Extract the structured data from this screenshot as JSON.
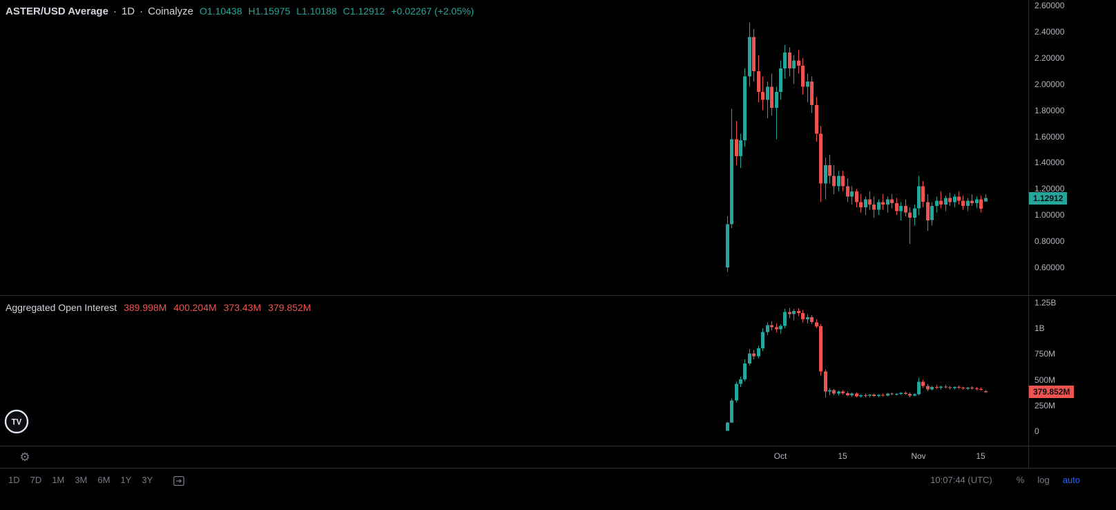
{
  "legend": {
    "symbol": "ASTER/USD Average",
    "dot": "·",
    "interval": "1D",
    "source": "Coinalyze",
    "open_label": "O",
    "open": "1.10438",
    "high_label": "H",
    "high": "1.15975",
    "low_label": "L",
    "low": "1.10188",
    "close_label": "C",
    "close": "1.12912",
    "change": "+0.02267 (+2.05%)"
  },
  "oi_legend": {
    "title": "Aggregated Open Interest",
    "open": "389.998M",
    "high": "400.204M",
    "low": "373.43M",
    "close": "379.852M"
  },
  "badges": {
    "price_last": "1.12912",
    "oi_last": "379.852M"
  },
  "toolbar": {
    "timeframes": [
      "1D",
      "7D",
      "1M",
      "3M",
      "6M",
      "1Y",
      "3Y"
    ],
    "clock": "10:07:44 (UTC)",
    "percent_label": "%",
    "log_label": "log",
    "auto_label": "auto"
  },
  "colors": {
    "green": "#26a69a",
    "red": "#ef5350",
    "accent_blue": "#2962ff"
  },
  "chart_data": [
    {
      "type": "candlestick",
      "title": "ASTER/USD Average · 1D · Coinalyze",
      "last_ohlc": {
        "o": 1.10438,
        "h": 1.15975,
        "l": 1.10188,
        "c": 1.12912,
        "change": "+0.02267 (+2.05%)"
      },
      "ylim": [
        0.55,
        2.65
      ],
      "grid": false,
      "y_ticks": [
        {
          "v": 2.6,
          "label": "2.60000"
        },
        {
          "v": 2.4,
          "label": "2.40000"
        },
        {
          "v": 2.2,
          "label": "2.20000"
        },
        {
          "v": 2.0,
          "label": "2.00000"
        },
        {
          "v": 1.8,
          "label": "1.80000"
        },
        {
          "v": 1.6,
          "label": "1.60000"
        },
        {
          "v": 1.4,
          "label": "1.40000"
        },
        {
          "v": 1.2,
          "label": "1.20000"
        },
        {
          "v": 1.0,
          "label": "1.00000"
        },
        {
          "v": 0.8,
          "label": "0.80000"
        },
        {
          "v": 0.6,
          "label": "0.60000"
        }
      ],
      "x_ticks": [
        {
          "d": 12,
          "label": "Oct"
        },
        {
          "d": 26,
          "label": "15"
        },
        {
          "d": 43,
          "label": "Nov"
        },
        {
          "d": 57,
          "label": "15"
        }
      ],
      "candles": [
        [
          0.6,
          0.99,
          0.565,
          0.93
        ],
        [
          0.93,
          1.81,
          0.9,
          1.58
        ],
        [
          1.58,
          1.72,
          1.38,
          1.45
        ],
        [
          1.45,
          1.62,
          1.36,
          1.57
        ],
        [
          1.57,
          2.12,
          1.52,
          2.06
        ],
        [
          2.06,
          2.47,
          1.98,
          2.36
        ],
        [
          2.36,
          2.42,
          2.02,
          2.1
        ],
        [
          2.1,
          2.22,
          1.86,
          1.94
        ],
        [
          1.94,
          2.06,
          1.8,
          1.88
        ],
        [
          1.88,
          2.02,
          1.74,
          1.98
        ],
        [
          1.98,
          2.08,
          1.76,
          1.82
        ],
        [
          1.82,
          1.98,
          1.58,
          1.94
        ],
        [
          1.94,
          2.18,
          1.88,
          2.12
        ],
        [
          2.12,
          2.3,
          2.04,
          2.24
        ],
        [
          2.24,
          2.28,
          2.06,
          2.12
        ],
        [
          2.12,
          2.22,
          2.0,
          2.18
        ],
        [
          2.18,
          2.26,
          2.08,
          2.14
        ],
        [
          2.14,
          2.2,
          1.92,
          1.98
        ],
        [
          1.98,
          2.08,
          1.86,
          2.02
        ],
        [
          2.02,
          2.06,
          1.78,
          1.84
        ],
        [
          1.84,
          1.9,
          1.56,
          1.62
        ],
        [
          1.62,
          1.68,
          1.1,
          1.24
        ],
        [
          1.24,
          1.44,
          1.12,
          1.38
        ],
        [
          1.38,
          1.46,
          1.24,
          1.3
        ],
        [
          1.3,
          1.38,
          1.16,
          1.22
        ],
        [
          1.22,
          1.34,
          1.18,
          1.3
        ],
        [
          1.3,
          1.34,
          1.18,
          1.22
        ],
        [
          1.22,
          1.28,
          1.1,
          1.14
        ],
        [
          1.14,
          1.22,
          1.08,
          1.18
        ],
        [
          1.18,
          1.2,
          1.06,
          1.1
        ],
        [
          1.1,
          1.16,
          1.02,
          1.06
        ],
        [
          1.06,
          1.14,
          1.0,
          1.12
        ],
        [
          1.12,
          1.18,
          1.04,
          1.08
        ],
        [
          1.08,
          1.14,
          0.98,
          1.04
        ],
        [
          1.04,
          1.12,
          1.0,
          1.1
        ],
        [
          1.1,
          1.16,
          1.04,
          1.08
        ],
        [
          1.08,
          1.14,
          1.02,
          1.12
        ],
        [
          1.12,
          1.16,
          1.05,
          1.09
        ],
        [
          1.09,
          1.13,
          1.0,
          1.03
        ],
        [
          1.03,
          1.1,
          0.96,
          1.07
        ],
        [
          1.07,
          1.12,
          0.99,
          1.02
        ],
        [
          1.02,
          1.06,
          0.78,
          0.98
        ],
        [
          0.98,
          1.08,
          0.92,
          1.05
        ],
        [
          1.05,
          1.3,
          1.0,
          1.22
        ],
        [
          1.22,
          1.26,
          1.06,
          1.1
        ],
        [
          1.1,
          1.16,
          0.88,
          0.96
        ],
        [
          0.96,
          1.1,
          0.92,
          1.07
        ],
        [
          1.07,
          1.14,
          1.02,
          1.11
        ],
        [
          1.11,
          1.18,
          1.05,
          1.08
        ],
        [
          1.08,
          1.15,
          1.03,
          1.13
        ],
        [
          1.13,
          1.17,
          1.07,
          1.1
        ],
        [
          1.1,
          1.16,
          1.06,
          1.14
        ],
        [
          1.14,
          1.18,
          1.08,
          1.11
        ],
        [
          1.11,
          1.15,
          1.04,
          1.07
        ],
        [
          1.07,
          1.13,
          1.03,
          1.11
        ],
        [
          1.11,
          1.16,
          1.07,
          1.09
        ],
        [
          1.09,
          1.14,
          1.05,
          1.12
        ],
        [
          1.12,
          1.15,
          1.02,
          1.05
        ],
        [
          1.10438,
          1.15975,
          1.10188,
          1.12912
        ]
      ]
    },
    {
      "type": "candlestick",
      "title": "Aggregated Open Interest",
      "unit": "M",
      "last_ohlc": {
        "o": 389.998,
        "h": 400.204,
        "l": 373.43,
        "c": 379.852
      },
      "ylim": [
        0,
        1350
      ],
      "grid": false,
      "y_ticks": [
        {
          "v": 1250,
          "label": "1.25B"
        },
        {
          "v": 1000,
          "label": "1B"
        },
        {
          "v": 750,
          "label": "750M"
        },
        {
          "v": 500,
          "label": "500M"
        },
        {
          "v": 250,
          "label": "250M"
        },
        {
          "v": 0,
          "label": "0"
        }
      ],
      "candles": [
        [
          5,
          90,
          4,
          85
        ],
        [
          85,
          320,
          80,
          300
        ],
        [
          300,
          480,
          280,
          460
        ],
        [
          460,
          530,
          430,
          505
        ],
        [
          505,
          700,
          485,
          660
        ],
        [
          660,
          800,
          640,
          755
        ],
        [
          755,
          790,
          700,
          730
        ],
        [
          730,
          830,
          710,
          805
        ],
        [
          805,
          1000,
          780,
          965
        ],
        [
          965,
          1060,
          935,
          1030
        ],
        [
          1030,
          1070,
          980,
          1010
        ],
        [
          1010,
          1050,
          960,
          990
        ],
        [
          990,
          1040,
          950,
          1025
        ],
        [
          1025,
          1190,
          1000,
          1160
        ],
        [
          1160,
          1200,
          1100,
          1140
        ],
        [
          1140,
          1190,
          1080,
          1170
        ],
        [
          1170,
          1195,
          1120,
          1150
        ],
        [
          1150,
          1180,
          1060,
          1090
        ],
        [
          1090,
          1140,
          1050,
          1110
        ],
        [
          1110,
          1130,
          1040,
          1060
        ],
        [
          1060,
          1090,
          1000,
          1020
        ],
        [
          1020,
          1040,
          540,
          580
        ],
        [
          580,
          600,
          330,
          385
        ],
        [
          385,
          420,
          350,
          400
        ],
        [
          400,
          410,
          348,
          365
        ],
        [
          365,
          395,
          345,
          385
        ],
        [
          385,
          400,
          355,
          370
        ],
        [
          370,
          385,
          340,
          350
        ],
        [
          350,
          375,
          335,
          365
        ],
        [
          365,
          375,
          330,
          340
        ],
        [
          340,
          360,
          325,
          350
        ],
        [
          350,
          365,
          330,
          345
        ],
        [
          345,
          360,
          330,
          355
        ],
        [
          355,
          365,
          335,
          342
        ],
        [
          342,
          358,
          330,
          352
        ],
        [
          352,
          365,
          338,
          346
        ],
        [
          346,
          372,
          340,
          365
        ],
        [
          365,
          378,
          350,
          358
        ],
        [
          358,
          370,
          345,
          362
        ],
        [
          362,
          380,
          352,
          372
        ],
        [
          372,
          385,
          355,
          362
        ],
        [
          362,
          375,
          330,
          345
        ],
        [
          345,
          370,
          338,
          360
        ],
        [
          360,
          520,
          350,
          480
        ],
        [
          480,
          500,
          420,
          440
        ],
        [
          440,
          460,
          390,
          405
        ],
        [
          405,
          440,
          395,
          430
        ],
        [
          430,
          450,
          410,
          425
        ],
        [
          425,
          445,
          405,
          435
        ],
        [
          435,
          450,
          415,
          428
        ],
        [
          428,
          440,
          408,
          420
        ],
        [
          420,
          438,
          405,
          430
        ],
        [
          430,
          442,
          412,
          422
        ],
        [
          422,
          435,
          402,
          415
        ],
        [
          415,
          430,
          400,
          425
        ],
        [
          425,
          438,
          408,
          418
        ],
        [
          418,
          430,
          398,
          410
        ],
        [
          410,
          425,
          395,
          405
        ],
        [
          389.998,
          400.204,
          373.43,
          379.852
        ]
      ]
    }
  ]
}
